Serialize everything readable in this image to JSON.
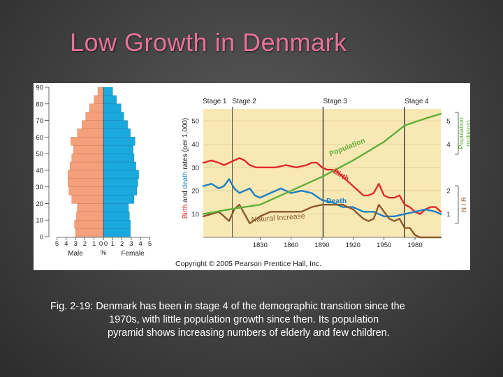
{
  "slide": {
    "title": "Low Growth in Denmark",
    "caption_lines": [
      "Fig. 2-19: Denmark has been in stage 4 of the demographic transition since the",
      "1970s, with little population growth since then. Its population",
      "pyramid shows increasing numbers of elderly and few children."
    ],
    "copyright": "Copyright © 2005 Pearson Prentice Hall, Inc.",
    "colors": {
      "title": "#e8719a",
      "male": "#f4a07a",
      "female": "#1ba8dc",
      "stage_bg": "#f8e8b4",
      "birth": "#e02b2b",
      "death": "#1f7fc4",
      "natural_increase": "#8b5a2b",
      "population": "#5fae3a"
    }
  },
  "chart_data": [
    {
      "type": "bar",
      "subtype": "population-pyramid",
      "age_groups": [
        0,
        5,
        10,
        15,
        20,
        25,
        30,
        35,
        40,
        45,
        50,
        55,
        60,
        65,
        70,
        75,
        80,
        85
      ],
      "y_ticks": [
        0,
        10,
        20,
        30,
        40,
        50,
        60,
        70,
        80,
        90
      ],
      "x_ticks": [
        "5",
        "4",
        "3",
        "2",
        "1",
        "0",
        "0",
        "1",
        "2",
        "3",
        "4",
        "5"
      ],
      "xlabel_male": "Male",
      "xlabel_center": "%",
      "xlabel_female": "Female",
      "series": [
        {
          "name": "Male",
          "values": [
            3.0,
            3.1,
            2.9,
            2.8,
            3.4,
            3.7,
            3.8,
            3.8,
            3.6,
            3.4,
            3.2,
            3.5,
            2.8,
            2.3,
            1.9,
            1.5,
            1.0,
            0.6
          ]
        },
        {
          "name": "Female",
          "values": [
            2.9,
            2.9,
            2.8,
            2.7,
            3.3,
            3.6,
            3.7,
            3.8,
            3.5,
            3.3,
            3.2,
            3.4,
            2.9,
            2.6,
            2.2,
            1.9,
            1.4,
            1.0
          ]
        }
      ],
      "xlim": [
        0,
        5
      ],
      "ylim": [
        0,
        90
      ]
    },
    {
      "type": "line",
      "x_ticks": [
        "1830",
        "1860",
        "1890",
        "1920",
        "1950",
        "1980"
      ],
      "left_axis": {
        "label_parts": [
          "Birth",
          " and ",
          "death",
          " rates (per 1,000)"
        ],
        "ticks": [
          10,
          20,
          30,
          40,
          50
        ],
        "ylim": [
          0,
          57
        ]
      },
      "right_axis_population": {
        "label": "Population (millions)",
        "ticks": [
          4,
          5
        ]
      },
      "right_axis_nir": {
        "label": "N I R",
        "ticks": [
          1,
          2
        ]
      },
      "stages": [
        {
          "label": "Stage 1",
          "start": 1775,
          "end": 1803
        },
        {
          "label": "Stage 2",
          "start": 1803,
          "end": 1891
        },
        {
          "label": "Stage 3",
          "start": 1891,
          "end": 1970
        },
        {
          "label": "Stage 4",
          "start": 1970,
          "end": 2005
        }
      ],
      "series": [
        {
          "name": "Birth",
          "x": [
            1775,
            1783,
            1790,
            1795,
            1800,
            1805,
            1810,
            1815,
            1820,
            1826,
            1835,
            1845,
            1855,
            1865,
            1875,
            1880,
            1885,
            1890,
            1895,
            1900,
            1905,
            1910,
            1915,
            1920,
            1925,
            1930,
            1935,
            1940,
            1945,
            1950,
            1955,
            1960,
            1965,
            1970,
            1975,
            1980,
            1985,
            1990,
            1995,
            2000,
            2005
          ],
          "y": [
            32,
            33,
            32,
            31,
            32,
            33,
            34,
            33,
            31,
            30,
            30,
            30,
            31,
            30,
            31,
            32,
            32,
            30,
            29,
            29,
            28,
            26,
            24,
            22,
            20,
            18,
            18,
            19,
            23,
            18,
            17,
            17,
            18,
            14,
            13,
            11,
            10,
            12,
            13,
            13,
            11
          ]
        },
        {
          "name": "Death",
          "x": [
            1775,
            1783,
            1790,
            1795,
            1800,
            1805,
            1810,
            1815,
            1820,
            1825,
            1830,
            1840,
            1850,
            1860,
            1870,
            1880,
            1890,
            1900,
            1910,
            1920,
            1930,
            1940,
            1950,
            1960,
            1970,
            1980,
            1990,
            2000,
            2005
          ],
          "y": [
            22,
            23,
            21,
            22,
            25,
            21,
            19,
            20,
            21,
            18,
            17,
            19,
            21,
            19,
            20,
            19,
            16,
            15,
            13,
            13,
            11,
            11,
            9,
            9,
            10,
            11,
            12,
            11,
            10
          ]
        },
        {
          "name": "Natural Increase",
          "x": [
            1775,
            1783,
            1790,
            1795,
            1800,
            1805,
            1810,
            1815,
            1820,
            1830,
            1840,
            1850,
            1860,
            1870,
            1880,
            1890,
            1900,
            1910,
            1920,
            1930,
            1935,
            1940,
            1945,
            1950,
            1955,
            1960,
            1965,
            1970,
            1975,
            1980,
            1985,
            1990,
            2000,
            2005
          ],
          "y": [
            9,
            10,
            11,
            9,
            7,
            12,
            14,
            10,
            6,
            9,
            11,
            11,
            11,
            11,
            13,
            14,
            14,
            14,
            12,
            8,
            7,
            8,
            14,
            11,
            8,
            7,
            8,
            4,
            4,
            1,
            0,
            0,
            0,
            0
          ]
        },
        {
          "name": "Population",
          "x": [
            1775,
            1800,
            1830,
            1860,
            1890,
            1920,
            1950,
            1970,
            1990,
            2005
          ],
          "y": [
            10,
            12,
            14,
            20,
            26,
            33,
            41,
            48,
            51,
            53
          ]
        }
      ]
    }
  ]
}
